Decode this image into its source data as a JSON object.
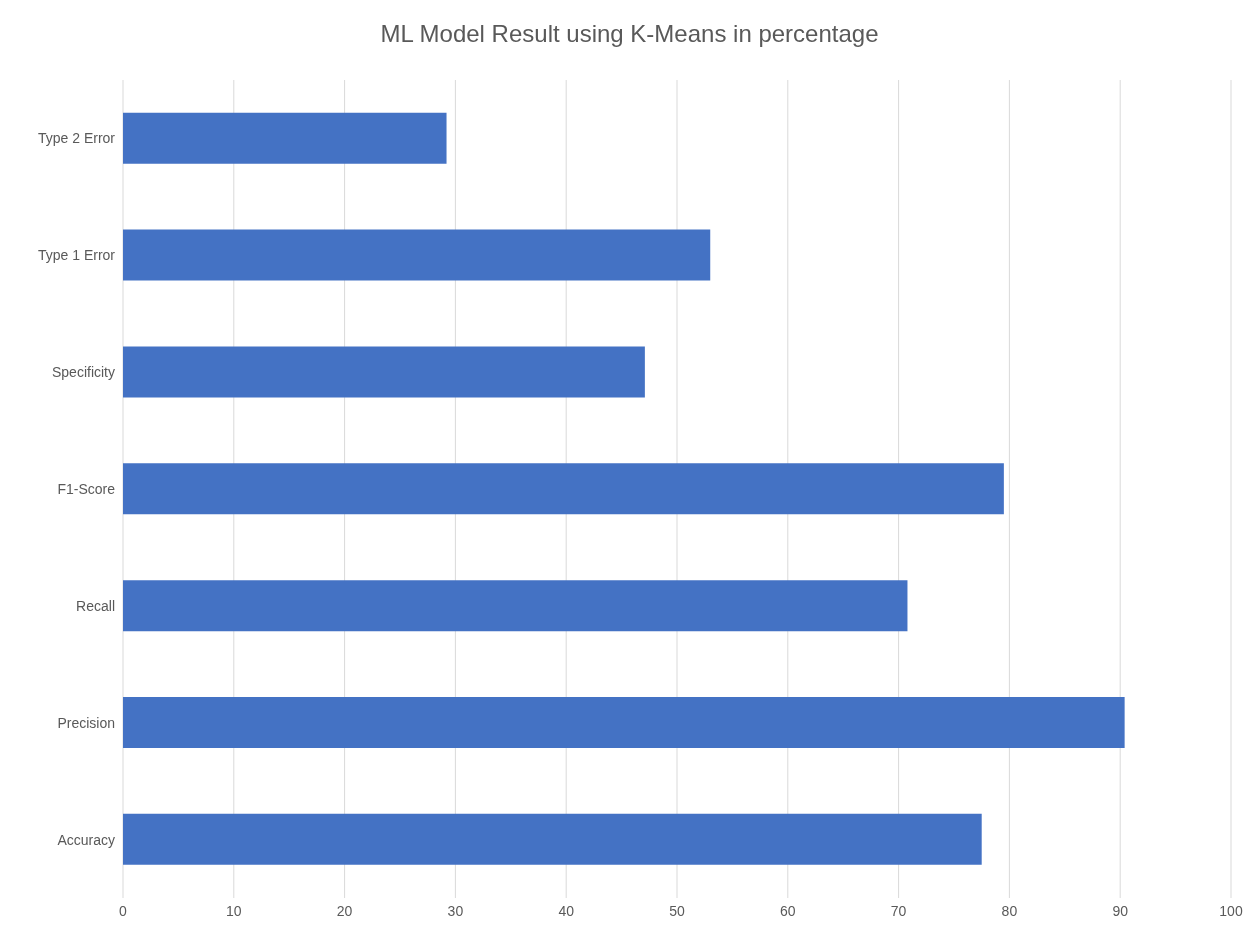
{
  "chart_data": {
    "type": "bar",
    "orientation": "horizontal",
    "title": "ML Model Result using K-Means in percentage",
    "categories": [
      "Type 2 Error",
      "Type 1 Error",
      "Specificity",
      "F1-Score",
      "Recall",
      "Precision",
      "Accuracy"
    ],
    "values": [
      29.2,
      53.0,
      47.1,
      79.5,
      70.8,
      90.4,
      77.5
    ],
    "color": "#4472c4",
    "xlim": [
      0,
      100
    ],
    "xticks": [
      0,
      10,
      20,
      30,
      40,
      50,
      60,
      70,
      80,
      90,
      100
    ],
    "grid": "x"
  }
}
